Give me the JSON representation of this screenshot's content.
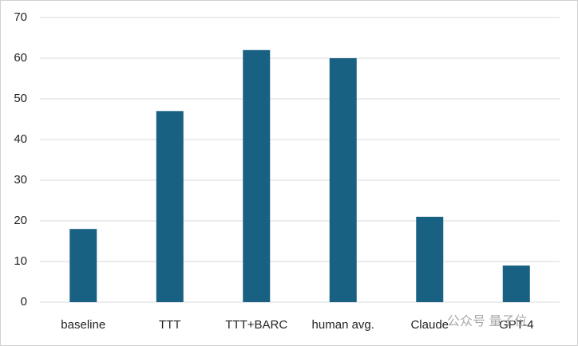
{
  "chart_data": {
    "type": "bar",
    "categories": [
      "baseline",
      "TTT",
      "TTT+BARC",
      "human avg.",
      "Claude",
      "GPT-4"
    ],
    "values": [
      18,
      47,
      62,
      60,
      21,
      9
    ],
    "color": "#186182",
    "ylim": [
      0,
      70
    ],
    "yticks": [
      0,
      10,
      20,
      30,
      40,
      50,
      60,
      70
    ],
    "grid": true,
    "watermark": "公众号 量子位"
  }
}
